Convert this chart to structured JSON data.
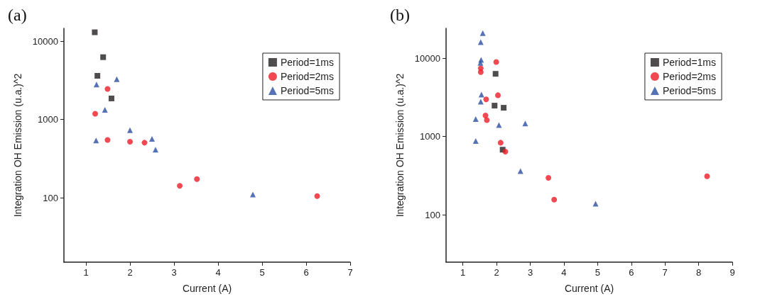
{
  "chart_data": [
    {
      "type": "scatter",
      "title": "(a)",
      "xlabel": "Current (A)",
      "ylabel": "Integration OH Emission (u.a.)^2",
      "log": "y",
      "xlim": [
        0.5,
        7
      ],
      "xticks": [
        1,
        2,
        3,
        4,
        5,
        6,
        7
      ],
      "ylim": [
        15,
        14600
      ],
      "yticks": [
        100,
        1000,
        10000
      ],
      "grid": false,
      "legend": "top right",
      "series": [
        {
          "name": "Period=1ms",
          "color": "#231f20",
          "marker": "square",
          "x": [
            1.2,
            1.39,
            1.26,
            1.58
          ],
          "values": [
            13000,
            6250,
            3610,
            1855
          ]
        },
        {
          "name": "Period=2ms",
          "color": "#ee1c25",
          "marker": "circle",
          "x": [
            1.21,
            1.49,
            1.49,
            2.0,
            2.33,
            3.13,
            3.52,
            6.25
          ],
          "values": [
            1183,
            2455,
            547,
            520,
            505,
            142,
            173,
            105
          ]
        },
        {
          "name": "Period=5ms",
          "color": "#2b4fa2",
          "marker": "triangle",
          "x": [
            1.24,
            1.7,
            1.43,
            1.23,
            2.0,
            2.5,
            2.58,
            4.79
          ],
          "values": [
            2800,
            3270,
            1324,
            540,
            730,
            566,
            410,
            110
          ]
        }
      ]
    },
    {
      "type": "scatter",
      "title": "(b)",
      "xlabel": "Current (A)",
      "ylabel": "Integration OH Emission (u.a.)^2",
      "log": "y",
      "xlim": [
        0.5,
        9
      ],
      "xticks": [
        1,
        2,
        3,
        4,
        5,
        6,
        7,
        8,
        9
      ],
      "ylim": [
        25,
        24000
      ],
      "yticks": [
        100,
        1000,
        10000
      ],
      "grid": false,
      "legend": "top right",
      "series": [
        {
          "name": "Period=1ms",
          "color": "#231f20",
          "marker": "square",
          "x": [
            1.97,
            1.94,
            2.21,
            2.18
          ],
          "values": [
            6310,
            2480,
            2330,
            680
          ]
        },
        {
          "name": "Period=2ms",
          "color": "#ee1c25",
          "marker": "circle",
          "x": [
            1.99,
            1.53,
            1.53,
            1.69,
            2.04,
            1.67,
            1.71,
            2.12,
            2.26,
            3.54,
            3.71,
            8.25
          ],
          "values": [
            8930,
            7430,
            6640,
            2985,
            3365,
            1857,
            1623,
            835,
            643,
            297,
            157,
            312
          ]
        },
        {
          "name": "Period=5ms",
          "color": "#2b4fa2",
          "marker": "triangle",
          "x": [
            1.59,
            1.53,
            1.54,
            1.52,
            1.55,
            1.53,
            1.38,
            2.07,
            2.85,
            1.38,
            2.71,
            4.94
          ],
          "values": [
            20900,
            15960,
            9500,
            8700,
            3435,
            2780,
            1670,
            1400,
            1470,
            877,
            362,
            139
          ]
        }
      ]
    }
  ]
}
